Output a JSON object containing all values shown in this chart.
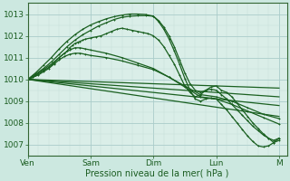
{
  "bg_color": "#cce8e0",
  "plot_bg_color": "#daeee8",
  "grid_color_major": "#aaccca",
  "grid_color_minor": "#c4ddd8",
  "line_color": "#1a6020",
  "xlabel": "Pression niveau de la mer( hPa )",
  "xlabel_color": "#1a5c20",
  "tick_color": "#1a5c20",
  "spine_color": "#336633",
  "ylim": [
    1006.5,
    1013.5
  ],
  "yticks": [
    1007,
    1008,
    1009,
    1010,
    1011,
    1012,
    1013
  ],
  "x_days": [
    "Ven",
    "Sam",
    "Dim",
    "Lun",
    "M"
  ],
  "x_day_positions": [
    0,
    24,
    48,
    72,
    96
  ],
  "total_hours": 99,
  "series": [
    {
      "x": [
        0,
        96
      ],
      "y": [
        1010.0,
        1008.3
      ],
      "marker": "none",
      "lw": 0.9
    },
    {
      "x": [
        0,
        96
      ],
      "y": [
        1010.0,
        1008.8
      ],
      "marker": "none",
      "lw": 0.9
    },
    {
      "x": [
        0,
        96
      ],
      "y": [
        1010.0,
        1009.2
      ],
      "marker": "none",
      "lw": 0.9
    },
    {
      "x": [
        0,
        96
      ],
      "y": [
        1010.0,
        1009.6
      ],
      "marker": "none",
      "lw": 0.9
    },
    {
      "x": [
        0,
        2,
        4,
        6,
        8,
        10,
        12,
        14,
        16,
        18,
        20,
        22,
        24,
        30,
        36,
        42,
        48,
        54,
        60,
        66,
        72,
        78,
        84,
        90,
        96
      ],
      "y": [
        1010.0,
        1010.1,
        1010.2,
        1010.35,
        1010.5,
        1010.7,
        1010.9,
        1011.05,
        1011.15,
        1011.2,
        1011.2,
        1011.15,
        1011.1,
        1011.0,
        1010.85,
        1010.65,
        1010.45,
        1010.1,
        1009.7,
        1009.3,
        1009.2,
        1009.0,
        1008.7,
        1008.4,
        1008.2
      ],
      "marker": "+",
      "lw": 0.9
    },
    {
      "x": [
        0,
        2,
        4,
        6,
        8,
        10,
        12,
        14,
        16,
        18,
        20,
        22,
        24,
        30,
        36,
        42,
        48,
        54,
        60,
        66,
        72,
        78,
        84,
        90,
        96
      ],
      "y": [
        1010.0,
        1010.1,
        1010.25,
        1010.4,
        1010.55,
        1010.75,
        1011.0,
        1011.2,
        1011.35,
        1011.45,
        1011.45,
        1011.4,
        1011.35,
        1011.2,
        1011.0,
        1010.75,
        1010.5,
        1010.1,
        1009.65,
        1009.2,
        1009.1,
        1008.85,
        1008.55,
        1008.25,
        1007.95
      ],
      "marker": "+",
      "lw": 0.9
    },
    {
      "x": [
        0,
        3,
        6,
        9,
        12,
        15,
        16,
        17,
        18,
        19,
        20,
        21,
        22,
        24,
        26,
        28,
        30,
        32,
        34,
        36,
        38,
        40,
        42,
        44,
        46,
        48,
        50,
        52,
        54,
        56,
        58,
        60,
        62,
        64,
        66,
        68,
        70,
        72,
        74,
        76,
        78,
        80,
        82,
        84,
        86,
        88,
        90,
        92,
        94,
        96
      ],
      "y": [
        1010.0,
        1010.2,
        1010.45,
        1010.7,
        1011.0,
        1011.3,
        1011.45,
        1011.55,
        1011.65,
        1011.7,
        1011.75,
        1011.8,
        1011.85,
        1011.9,
        1011.95,
        1012.0,
        1012.1,
        1012.2,
        1012.3,
        1012.35,
        1012.3,
        1012.25,
        1012.2,
        1012.15,
        1012.1,
        1012.0,
        1011.8,
        1011.5,
        1011.1,
        1010.7,
        1010.2,
        1009.7,
        1009.4,
        1009.2,
        1009.3,
        1009.5,
        1009.65,
        1009.7,
        1009.5,
        1009.4,
        1009.2,
        1008.9,
        1008.6,
        1008.3,
        1008.0,
        1007.75,
        1007.5,
        1007.3,
        1007.2,
        1007.3
      ],
      "marker": "+",
      "lw": 0.9
    },
    {
      "x": [
        0,
        3,
        6,
        9,
        12,
        15,
        18,
        21,
        24,
        27,
        30,
        33,
        36,
        39,
        42,
        45,
        48,
        50,
        52,
        54,
        56,
        58,
        60,
        62,
        64,
        66,
        68,
        70,
        72,
        74,
        76,
        78,
        80,
        82,
        84,
        86,
        88,
        90,
        92,
        94,
        96
      ],
      "y": [
        1010.0,
        1010.25,
        1010.5,
        1010.8,
        1011.15,
        1011.5,
        1011.8,
        1012.05,
        1012.25,
        1012.45,
        1012.6,
        1012.75,
        1012.85,
        1012.9,
        1012.92,
        1012.93,
        1012.9,
        1012.7,
        1012.4,
        1012.0,
        1011.5,
        1010.9,
        1010.3,
        1009.8,
        1009.5,
        1009.4,
        1009.5,
        1009.55,
        1009.5,
        1009.3,
        1009.1,
        1008.85,
        1008.6,
        1008.35,
        1008.1,
        1007.85,
        1007.65,
        1007.45,
        1007.3,
        1007.1,
        1007.2
      ],
      "marker": "+",
      "lw": 0.9
    },
    {
      "x": [
        0,
        3,
        6,
        9,
        12,
        15,
        18,
        21,
        24,
        27,
        30,
        33,
        36,
        39,
        42,
        45,
        48,
        50,
        52,
        54,
        56,
        58,
        60,
        62,
        64,
        66,
        68,
        70,
        72,
        74,
        76,
        78,
        80,
        82,
        84,
        86,
        88,
        90,
        92,
        94,
        96
      ],
      "y": [
        1010.0,
        1010.3,
        1010.65,
        1011.0,
        1011.4,
        1011.75,
        1012.05,
        1012.3,
        1012.5,
        1012.65,
        1012.78,
        1012.88,
        1012.95,
        1013.0,
        1013.0,
        1012.98,
        1012.9,
        1012.65,
        1012.3,
        1011.85,
        1011.3,
        1010.7,
        1010.05,
        1009.5,
        1009.1,
        1009.0,
        1009.1,
        1009.15,
        1009.1,
        1008.85,
        1008.6,
        1008.3,
        1008.0,
        1007.7,
        1007.4,
        1007.15,
        1006.95,
        1006.9,
        1006.95,
        1007.1,
        1007.3
      ],
      "marker": "+",
      "lw": 0.9
    }
  ]
}
